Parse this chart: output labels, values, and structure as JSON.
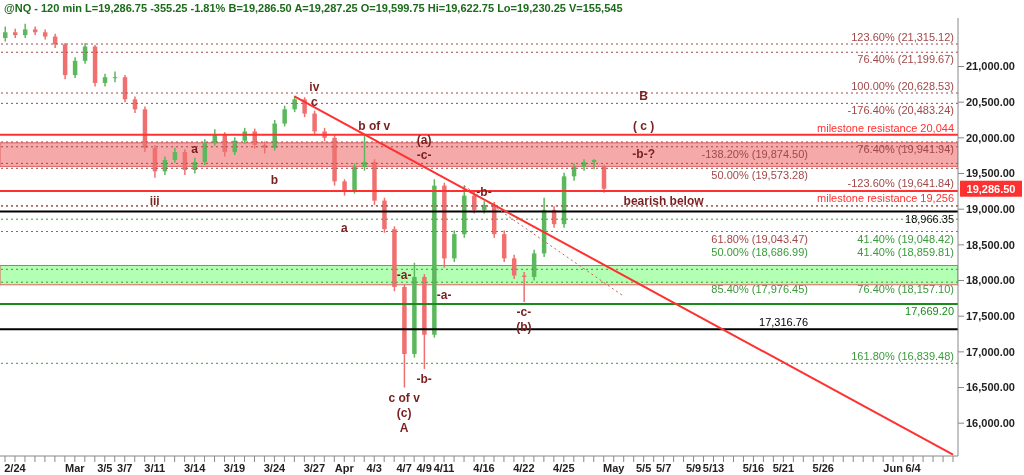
{
  "chart_data": {
    "type": "candlestick",
    "title": "@NQ - 120 min  L=19,286.75  -355.25  -1.81%  B=19,286.50  A=19,287.25  O=19,599.75  Hi=19,622.75  Lo=19,230.25  V=155,545",
    "categories": [
      null,
      "2/24",
      null,
      null,
      null,
      null,
      null,
      "Mar",
      null,
      null,
      "3/5",
      null,
      "3/7",
      null,
      null,
      "3/11",
      null,
      null,
      null,
      "3/14",
      null,
      null,
      null,
      "3/19",
      null,
      null,
      null,
      "3/24",
      null,
      null,
      null,
      "3/27",
      null,
      null,
      "Apr",
      null,
      null,
      "4/3",
      null,
      null,
      "4/7",
      null,
      "4/9",
      null,
      "4/11",
      null,
      null,
      null,
      "4/16",
      null,
      null,
      null,
      "4/22",
      null,
      null,
      null,
      "4/25",
      null,
      null,
      null,
      null,
      "May",
      null,
      null,
      "5/5",
      null,
      "5/7",
      null,
      null,
      "5/9",
      null,
      "5/13",
      null,
      null,
      null,
      "5/16",
      null,
      null,
      "5/21",
      null,
      null,
      null,
      "5/26",
      null,
      null,
      null,
      null,
      null,
      null,
      "Jun",
      null,
      "6/4",
      null,
      null,
      null,
      null
    ],
    "ohlc": [
      [
        21400,
        21560,
        21350,
        21480
      ],
      [
        21480,
        21530,
        21400,
        21440
      ],
      [
        21440,
        21600,
        21400,
        21520
      ],
      [
        21520,
        21560,
        21440,
        21480
      ],
      [
        21480,
        21520,
        21380,
        21420
      ],
      [
        21420,
        21460,
        21260,
        21310
      ],
      [
        21310,
        21330,
        20820,
        20880
      ],
      [
        20880,
        21130,
        20840,
        21080
      ],
      [
        21080,
        21330,
        21040,
        21280
      ],
      [
        21280,
        21300,
        20720,
        20770
      ],
      [
        20770,
        20900,
        20720,
        20850
      ],
      [
        20850,
        20930,
        20780,
        20850
      ],
      [
        20850,
        20880,
        20500,
        20540
      ],
      [
        20540,
        20580,
        20350,
        20400
      ],
      [
        20400,
        20440,
        19800,
        19860
      ],
      [
        19860,
        19900,
        19440,
        19530
      ],
      [
        19530,
        19740,
        19480,
        19690
      ],
      [
        19690,
        19860,
        19650,
        19800
      ],
      [
        19800,
        19840,
        19480,
        19550
      ],
      [
        19550,
        19720,
        19500,
        19660
      ],
      [
        19660,
        19980,
        19620,
        19930
      ],
      [
        19930,
        20120,
        19890,
        20040
      ],
      [
        20040,
        20080,
        19740,
        19800
      ],
      [
        19800,
        20010,
        19760,
        19960
      ],
      [
        19960,
        20140,
        19920,
        20090
      ],
      [
        20090,
        20130,
        19850,
        19900
      ],
      [
        19900,
        19950,
        19780,
        19860
      ],
      [
        19860,
        20250,
        19820,
        20200
      ],
      [
        20200,
        20450,
        20160,
        20400
      ],
      [
        20400,
        20590,
        20360,
        20540
      ],
      [
        20540,
        20570,
        20290,
        20340
      ],
      [
        20340,
        20380,
        20040,
        20090
      ],
      [
        20090,
        20140,
        19950,
        20000
      ],
      [
        20000,
        20040,
        19330,
        19390
      ],
      [
        19390,
        19420,
        19190,
        19260
      ],
      [
        19260,
        19640,
        19220,
        19590
      ],
      [
        19590,
        20050,
        19540,
        19660
      ],
      [
        19660,
        19700,
        19060,
        19120
      ],
      [
        19120,
        19160,
        18670,
        18720
      ],
      [
        18720,
        18760,
        17850,
        17910
      ],
      [
        17910,
        17950,
        16500,
        16970
      ],
      [
        16970,
        18250,
        16920,
        18050
      ],
      [
        18050,
        18090,
        16760,
        17240
      ],
      [
        17240,
        19420,
        17200,
        19330
      ],
      [
        19330,
        19370,
        18180,
        18310
      ],
      [
        18310,
        18700,
        18260,
        18650
      ],
      [
        18650,
        19330,
        18600,
        19190
      ],
      [
        19190,
        19240,
        18940,
        18990
      ],
      [
        18990,
        19110,
        18940,
        19060
      ],
      [
        19060,
        19100,
        18600,
        18650
      ],
      [
        18650,
        18700,
        18260,
        18310
      ],
      [
        18310,
        18360,
        18020,
        18070
      ],
      [
        18070,
        18120,
        17700,
        18050
      ],
      [
        18050,
        18430,
        18000,
        18380
      ],
      [
        18380,
        19160,
        18330,
        18990
      ],
      [
        18990,
        19040,
        18740,
        18790
      ],
      [
        18790,
        19510,
        18740,
        19460
      ],
      [
        19460,
        19640,
        19400,
        19590
      ],
      [
        19590,
        19700,
        19540,
        19660
      ],
      [
        19660,
        19700,
        19560,
        19690
      ],
      [
        19599.75,
        19622.75,
        19230.25,
        19286.75
      ],
      null,
      null,
      null,
      null,
      null,
      null,
      null,
      null,
      null,
      null,
      null,
      null,
      null,
      null,
      null,
      null,
      null,
      null,
      null,
      null,
      null,
      null,
      null,
      null,
      null,
      null,
      null,
      null,
      null,
      null,
      null,
      null,
      null,
      null,
      null
    ],
    "colors": [
      "#5cb85c",
      "#f07070",
      "#5cb85c",
      "#f07070",
      "#f07070",
      "#f07070",
      "#f07070",
      "#5cb85c",
      "#5cb85c",
      "#f07070",
      "#5cb85c",
      "#5cb85c",
      "#f07070",
      "#f07070",
      "#f07070",
      "#f07070",
      "#5cb85c",
      "#5cb85c",
      "#f07070",
      "#5cb85c",
      "#5cb85c",
      "#5cb85c",
      "#f07070",
      "#5cb85c",
      "#5cb85c",
      "#f07070",
      "#f07070",
      "#5cb85c",
      "#5cb85c",
      "#5cb85c",
      "#f07070",
      "#f07070",
      "#f07070",
      "#f07070",
      "#f07070",
      "#5cb85c",
      "#5cb85c",
      "#f07070",
      "#f07070",
      "#f07070",
      "#f07070",
      "#5cb85c",
      "#f07070",
      "#5cb85c",
      "#f07070",
      "#5cb85c",
      "#5cb85c",
      "#f07070",
      "#5cb85c",
      "#f07070",
      "#f07070",
      "#f07070",
      "#f07070",
      "#5cb85c",
      "#5cb85c",
      "#f07070",
      "#5cb85c",
      "#5cb85c",
      "#5cb85c",
      "#5cb85c",
      "#f07070",
      null,
      null,
      null,
      null,
      null,
      null,
      null,
      null,
      null,
      null,
      null,
      null,
      null,
      null,
      null,
      null,
      null,
      null,
      null,
      null,
      null,
      null,
      null,
      null,
      null,
      null,
      null,
      null,
      null,
      null,
      null,
      null,
      null,
      null,
      null
    ],
    "series": [
      {
        "type": "line",
        "color": "#ff3030",
        "line_style": "solid",
        "values": [
          null,
          null,
          null,
          null,
          null,
          null,
          null,
          null,
          null,
          null,
          null,
          null,
          null,
          null,
          null,
          null,
          null,
          null,
          null,
          null,
          null,
          null,
          null,
          null,
          null,
          null,
          null,
          null,
          null,
          20580,
          null,
          null,
          null,
          null,
          null,
          null,
          null,
          null,
          null,
          null,
          null,
          null,
          null,
          null,
          null,
          null,
          null,
          null,
          null,
          null,
          null,
          null,
          null,
          null,
          null,
          null,
          null,
          null,
          null,
          null,
          null,
          null,
          null,
          null,
          null,
          null,
          null,
          null,
          null,
          null,
          null,
          null,
          null,
          null,
          null,
          null,
          null,
          null,
          null,
          null,
          null,
          null,
          null,
          null,
          null,
          null,
          null,
          null,
          null,
          null,
          null,
          null,
          null,
          null,
          null,
          15560
        ]
      },
      {
        "type": "line",
        "color": "#c06060",
        "line_style": "dotted",
        "values": [
          null,
          null,
          null,
          null,
          null,
          null,
          null,
          null,
          null,
          null,
          null,
          null,
          null,
          null,
          null,
          null,
          null,
          null,
          null,
          null,
          null,
          null,
          null,
          null,
          null,
          null,
          null,
          null,
          null,
          null,
          null,
          null,
          null,
          null,
          null,
          null,
          null,
          null,
          null,
          null,
          null,
          null,
          null,
          null,
          null,
          null,
          19330,
          null,
          null,
          null,
          null,
          null,
          null,
          null,
          null,
          null,
          null,
          null,
          null,
          null,
          null,
          null,
          17780,
          null,
          null,
          null,
          null,
          null,
          null,
          null,
          null,
          null,
          null,
          null,
          null,
          null,
          null,
          null,
          null,
          null,
          null,
          null,
          null,
          null,
          null,
          null,
          null,
          null,
          null,
          null,
          null,
          null,
          null,
          null,
          null,
          null
        ]
      }
    ],
    "ylim": [
      15540,
      21680
    ],
    "yticks": [
      {
        "value": 16000,
        "label": "16,000.00"
      },
      {
        "value": 16500,
        "label": "16,500.00"
      },
      {
        "value": 17000,
        "label": "17,000.00"
      },
      {
        "value": 17500,
        "label": "17,500.00"
      },
      {
        "value": 18000,
        "label": "18,000.00"
      },
      {
        "value": 18500,
        "label": "18,500.00"
      },
      {
        "value": 19000,
        "label": "19,000.00"
      },
      {
        "value": 19500,
        "label": "19,500.00"
      },
      {
        "value": 20000,
        "label": "20,000.00"
      },
      {
        "value": 20500,
        "label": "20,500.00"
      },
      {
        "value": 21000,
        "label": "21,000.00"
      }
    ],
    "ref_lines": [
      {
        "axis": "y",
        "value": 21315.12,
        "label": "123.60% (21,315.12)",
        "color": "#a04848",
        "line_style": "dotted"
      },
      {
        "axis": "y",
        "value": 21199.67,
        "label": "76.40% (21,199.67)",
        "color": "#a04848",
        "line_style": "dotted"
      },
      {
        "axis": "y",
        "value": 20628.53,
        "label": "100.00% (20,628.53)",
        "color": "#a04848",
        "line_style": "dotted"
      },
      {
        "axis": "y",
        "value": 20483.24,
        "label": "-176.40% (20,483.24)",
        "color": "#a04848",
        "line_style": "dotted"
      },
      {
        "axis": "y",
        "value": 20044,
        "label": "milestone resistance 20,044",
        "color": "#ff3030",
        "line_style": "solid"
      },
      {
        "axis": "y",
        "value": 19941.94,
        "label": "76.40% (19,941.94)",
        "color": "#a04848",
        "line_style": "dotted"
      },
      {
        "axis": "y",
        "value": 19874.5,
        "label": "-138.20% (19,874.50)",
        "color": "#a04848",
        "line_style": "dotted"
      },
      {
        "axis": "y",
        "value": 19641.84,
        "label": "-123.60% (19,641.84)",
        "color": "#a04848",
        "line_style": "dotted"
      },
      {
        "axis": "y",
        "value": 19573.28,
        "label": "50.00% (19,573.28)",
        "color": "#a04848",
        "line_style": "dotted"
      },
      {
        "axis": "y",
        "value": 19256,
        "label": "milestone resistance 19,256",
        "color": "#ff3030",
        "line_style": "solid"
      },
      {
        "axis": "y",
        "value": 19048.42,
        "label": "41.40% (19,048.42)",
        "color": "#3a9a3a",
        "line_style": "dotted"
      },
      {
        "axis": "y",
        "value": 19043.47,
        "label": "61.80% (19,043.47)",
        "color": "#a04848",
        "line_style": "dotted"
      },
      {
        "axis": "y",
        "value": 18966.35,
        "label": "18,966.35",
        "color": "#000000",
        "line_style": "solid"
      },
      {
        "axis": "y",
        "value": 18859.81,
        "label": "41.40% (18,859.81)",
        "color": "#3a9a3a",
        "line_style": "dotted"
      },
      {
        "axis": "y",
        "value": 18686.99,
        "label": "50.00% (18,686.99)",
        "color": "#3a9a3a",
        "line_style": "dotted"
      },
      {
        "axis": "y",
        "value": 18157.1,
        "label": "76.40% (18,157.10)",
        "color": "#3a9a3a",
        "line_style": "dotted"
      },
      {
        "axis": "y",
        "value": 17976.45,
        "label": "85.40% (17,976.45)",
        "color": "#3a9a3a",
        "line_style": "dotted"
      },
      {
        "axis": "y",
        "value": 17669.2,
        "label": "17,669.20",
        "color": "#1a8a1a",
        "line_style": "solid"
      },
      {
        "axis": "y",
        "value": 17316.76,
        "label": "17,316.76",
        "color": "#000000",
        "line_style": "solid"
      },
      {
        "axis": "y",
        "value": 16839.48,
        "label": "161.80% (16,839.48)",
        "color": "#3a9a3a",
        "line_style": "dotted"
      }
    ],
    "bands": [
      {
        "axis": "y",
        "from": 17940,
        "to": 18210,
        "color": "#80ff80"
      },
      {
        "axis": "y",
        "from": 19600,
        "to": 19930,
        "color": "#f07070"
      }
    ],
    "annotations": [
      {
        "text": "iii",
        "x": "3/11",
        "y": 19260
      },
      {
        "text": "a",
        "x": "3/14",
        "y": 19720
      },
      {
        "text": "b",
        "x": "3/24",
        "y": 19550
      },
      {
        "text": "iv",
        "x": "3/27",
        "y": 20380
      },
      {
        "text": "c",
        "x": "3/27",
        "y": 20380
      },
      {
        "text": "b of v",
        "x": "4/3",
        "y": 20044
      },
      {
        "text": "a",
        "x": "Apr",
        "y": 18880
      },
      {
        "text": "(a)",
        "x": "4/9",
        "y": 19840
      },
      {
        "text": "-c-",
        "x": "4/9",
        "y": 19635
      },
      {
        "text": "-b-",
        "x": "4/16",
        "y": 19110
      },
      {
        "text": "-a-",
        "x": "4/7",
        "y": 17950
      },
      {
        "text": "-a-",
        "x": "4/11",
        "y": 17940
      },
      {
        "text": "-c-",
        "x": "4/22",
        "y": 17700
      },
      {
        "text": "(b)",
        "x": "4/22",
        "y": 17700
      },
      {
        "text": "-b-",
        "x": "4/9",
        "y": 16760
      },
      {
        "text": "c of v",
        "x": "4/7",
        "y": 16500
      },
      {
        "text": "(c)",
        "x": "4/7",
        "y": 16500
      },
      {
        "text": "A",
        "x": "4/7",
        "y": 16500
      },
      {
        "text": "B",
        "x": "5/5",
        "y": 20456
      },
      {
        "text": "( c )",
        "x": "5/5",
        "y": 20044
      },
      {
        "text": "-b-?",
        "x": "5/5",
        "y": 19641.84
      },
      {
        "text": "bearish below",
        "x": "5/7",
        "y": 19256
      },
      "19,286.50"
    ]
  }
}
